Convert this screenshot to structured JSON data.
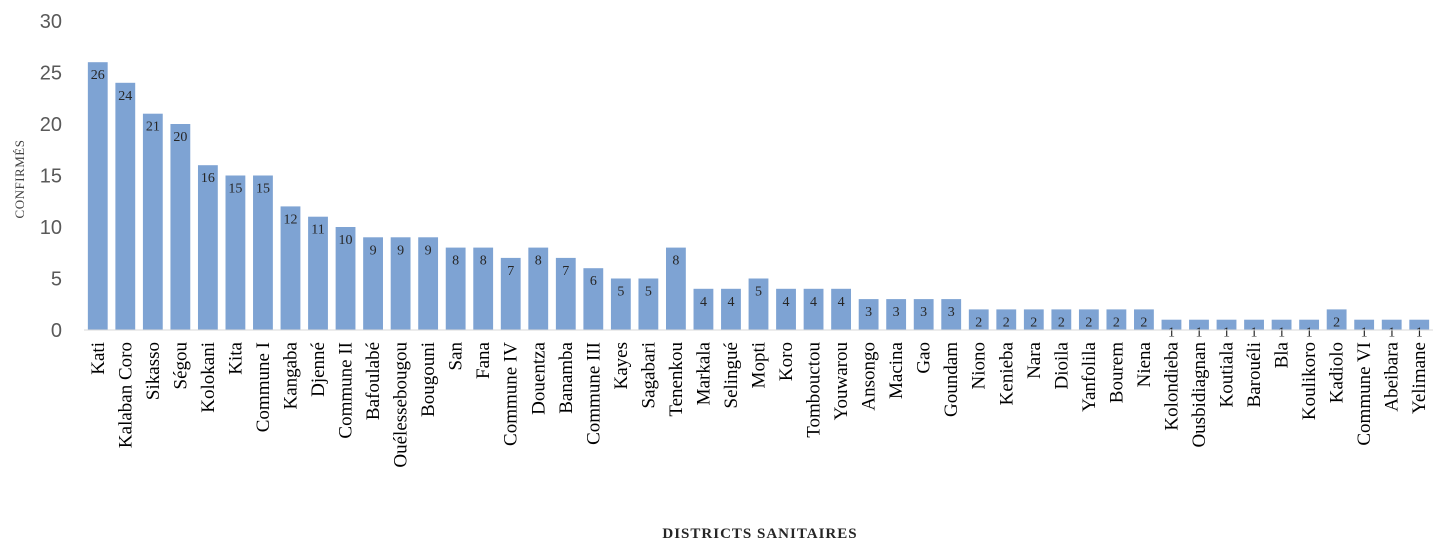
{
  "chart_data": {
    "type": "bar",
    "title": "",
    "xlabel": "DISTRICTS  SANITAIRES",
    "ylabel": "CONFIRMÉS",
    "ylim": [
      0,
      30
    ],
    "yticks": [
      0,
      5,
      10,
      15,
      20,
      25,
      30
    ],
    "grid": false,
    "legend": "none",
    "bar_color": "#7ea3d3",
    "categories": [
      "Kati",
      "Kalaban  Coro",
      "Sikasso",
      "Ségou",
      "Kolokani",
      "Kita",
      "Commune  I",
      "Kangaba",
      "Djenné",
      "Commune  II",
      "Bafoulabé",
      "Ouélessebougou",
      "Bougouni",
      "San",
      "Fana",
      "Commune  IV",
      "Douentza",
      "Banamba",
      "Commune  III",
      "Kayes",
      "Sagabari",
      "Tenenkou",
      "Markala",
      "Selingué",
      "Mopti",
      "Koro",
      "Tombouctou",
      "Youwarou",
      "Ansongo",
      "Macina",
      "Gao",
      "Goundam",
      "Niono",
      "Kenieba",
      "Nara",
      "Dioila",
      "Yanfolila",
      "Bourem",
      "Niena",
      "Kolondieba",
      "Ousbidiagnan",
      "Koutiala",
      "Barouéli",
      "Bla",
      "Koulikoro",
      "Kadiolo",
      "Commune  VI",
      "Abeibara",
      "Yelimane"
    ],
    "values": [
      26,
      24,
      21,
      20,
      16,
      15,
      15,
      12,
      11,
      10,
      9,
      9,
      9,
      8,
      8,
      7,
      8,
      7,
      6,
      5,
      5,
      8,
      4,
      4,
      5,
      4,
      4,
      4,
      3,
      3,
      3,
      3,
      2,
      2,
      2,
      2,
      2,
      2,
      2,
      1,
      1,
      1,
      1,
      1,
      1,
      2,
      1,
      1,
      1
    ]
  }
}
